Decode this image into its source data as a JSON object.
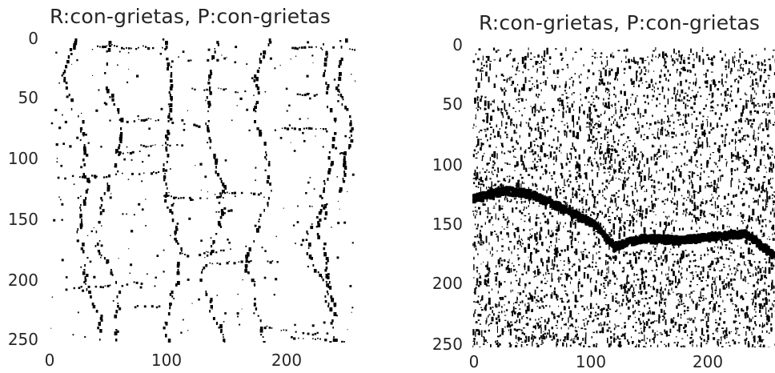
{
  "panels": [
    {
      "title": "R:con-grietas, P:con-grietas",
      "y_ticks": [
        "0",
        "50",
        "100",
        "150",
        "200",
        "250"
      ],
      "x_ticks": [
        "0",
        "100",
        "200"
      ]
    },
    {
      "title": "R:con-grietas, P:con-grietas",
      "y_ticks": [
        "0",
        "50",
        "100",
        "150",
        "200",
        "250"
      ],
      "x_ticks": [
        "0",
        "100",
        "200"
      ]
    }
  ],
  "colors": {
    "ink": "#000000",
    "background": "#ffffff",
    "label": "#262626"
  }
}
